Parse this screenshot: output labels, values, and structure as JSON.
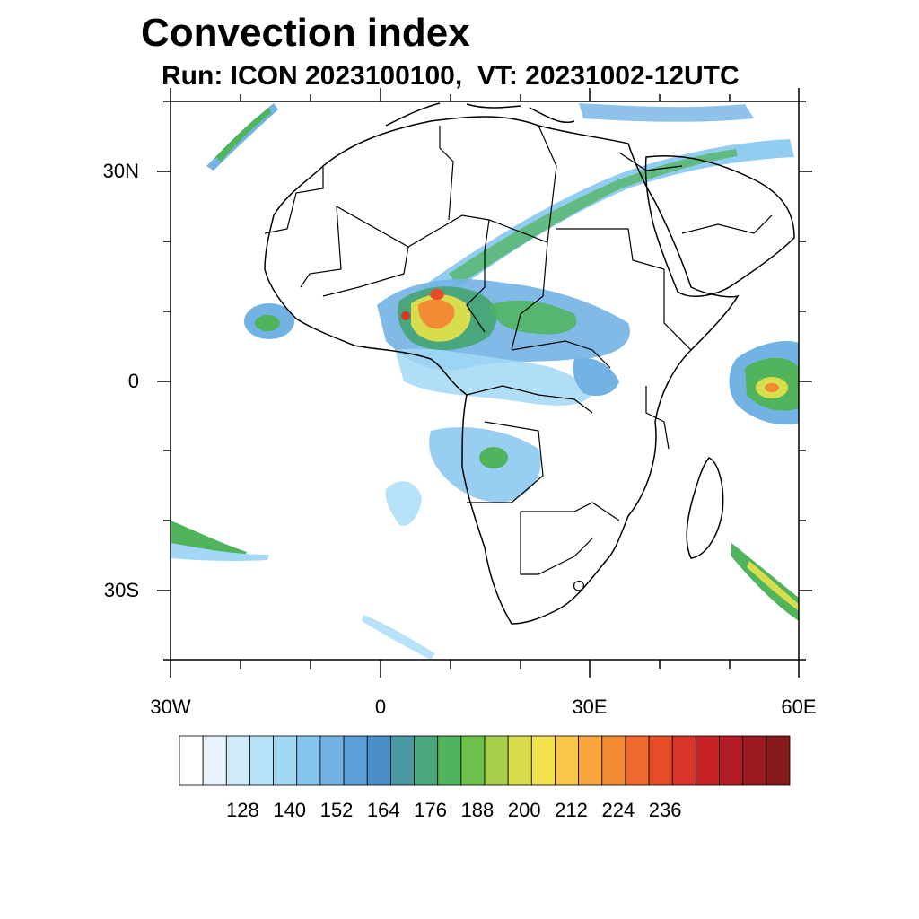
{
  "title": "Convection index",
  "subtitle": "Run: ICON 2023100100,  VT: 20231002-12UTC",
  "axes": {
    "lon_labels": [
      "30W",
      "0",
      "30E",
      "60E"
    ],
    "lat_labels": [
      "30N",
      "0",
      "30S"
    ]
  },
  "colorbar": {
    "labels": [
      "128",
      "140",
      "152",
      "164",
      "176",
      "188",
      "200",
      "212",
      "224",
      "236"
    ],
    "colors": [
      "#ffffff",
      "#e8f4fb",
      "#cfeaf8",
      "#b8e2f7",
      "#a2d8f5",
      "#86c6ee",
      "#73b3e4",
      "#5b9fd8",
      "#4a8fc9",
      "#4a9aa6",
      "#4aa67c",
      "#4fb45c",
      "#6cc04b",
      "#a6cf4a",
      "#d7dd4c",
      "#f2e24f",
      "#f8c747",
      "#f7a53e",
      "#f38a34",
      "#ef6a2c",
      "#e44d28",
      "#da3428",
      "#c82229",
      "#b31c27",
      "#9d1a22",
      "#871a1c"
    ],
    "edge": "#000000"
  },
  "map": {
    "coast_color": "#000000"
  }
}
